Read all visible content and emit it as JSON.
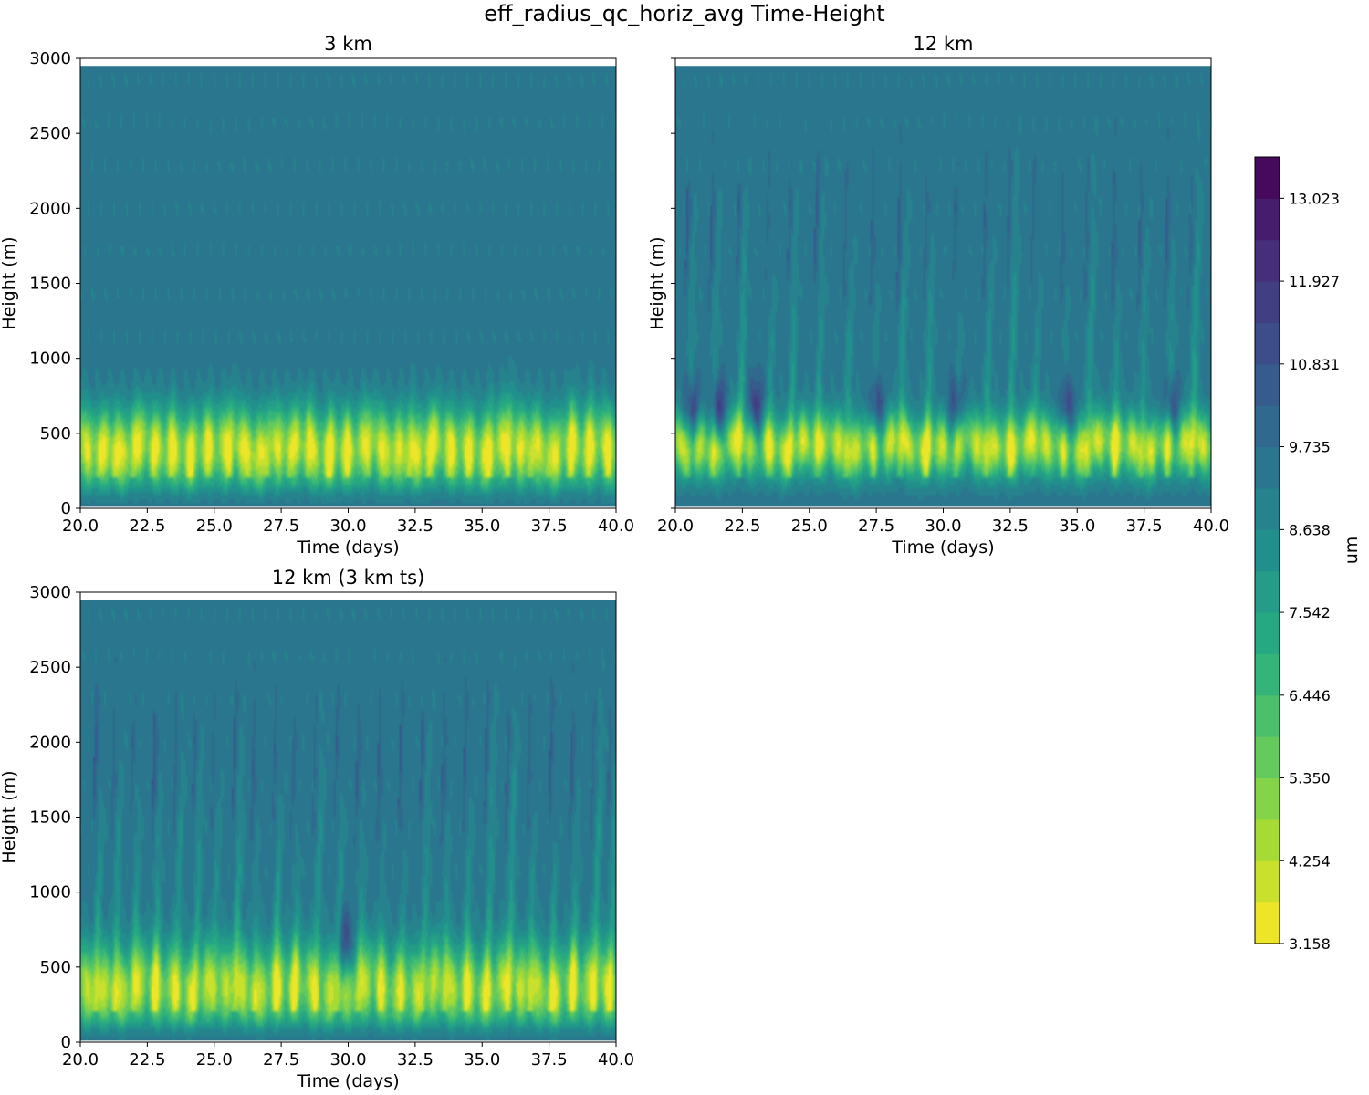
{
  "figure": {
    "suptitle": "eff_radius_qc_horiz_avg Time-Height"
  },
  "colormap": [
    "#440154",
    "#472c7a",
    "#3b518b",
    "#2c718e",
    "#21908d",
    "#27ad81",
    "#5cc863",
    "#aadc32",
    "#fde725"
  ],
  "chart_data": [
    {
      "type": "heatmap",
      "panel": "top-left",
      "title": "3 km",
      "xlabel": "Time (days)",
      "ylabel": "Height (m)",
      "xlim": [
        20,
        40
      ],
      "ylim": [
        0,
        3000
      ],
      "data_top": 2950,
      "x_ticks": [
        "20.0",
        "22.5",
        "25.0",
        "27.5",
        "30.0",
        "32.5",
        "35.0",
        "37.5",
        "40.0"
      ],
      "y_ticks": [
        "0",
        "500",
        "1000",
        "1500",
        "2000",
        "2500",
        "3000"
      ],
      "y_ticklabels_shown": true,
      "background_value": 9.4,
      "features": {
        "layer_center_m": 400,
        "layer_min_value": 3.4,
        "layer_spread_m": 260,
        "spike_top_m": 1100,
        "spike_days": [
          20.7,
          21.3,
          22.0,
          22.7,
          23.4,
          24.1,
          24.8,
          25.6,
          26.3,
          27.0,
          27.8,
          28.5,
          29.3,
          30.0,
          30.8,
          31.5,
          32.3,
          33.0,
          33.8,
          34.5,
          35.3,
          36.0,
          36.8,
          37.5,
          38.3,
          39.0,
          39.7
        ],
        "large_drop_days": []
      }
    },
    {
      "type": "heatmap",
      "panel": "top-right",
      "title": "12 km",
      "xlabel": "Time (days)",
      "ylabel": "Height (m)",
      "xlim": [
        20,
        40
      ],
      "ylim": [
        0,
        3000
      ],
      "data_top": 2950,
      "x_ticks": [
        "20.0",
        "22.5",
        "25.0",
        "27.5",
        "30.0",
        "32.5",
        "35.0",
        "37.5",
        "40.0"
      ],
      "y_ticks": [
        "0",
        "500",
        "1000",
        "1500",
        "2000",
        "2500",
        "3000"
      ],
      "y_ticklabels_shown": false,
      "background_value": 9.4,
      "features": {
        "layer_center_m": 420,
        "layer_min_value": 3.6,
        "layer_spread_m": 200,
        "spike_top_m": 2700,
        "spike_days": [
          20.5,
          21.4,
          22.4,
          23.5,
          24.3,
          25.3,
          26.4,
          27.4,
          28.4,
          29.4,
          30.5,
          31.6,
          32.5,
          33.4,
          34.5,
          35.4,
          36.4,
          37.4,
          38.4,
          39.3
        ],
        "large_drop_days": [
          20.6,
          21.6,
          23.0,
          27.5,
          30.5,
          34.6,
          38.5
        ]
      }
    },
    {
      "type": "heatmap",
      "panel": "bottom-left",
      "title": "12 km (3 km ts)",
      "xlabel": "Time (days)",
      "ylabel": "Height (m)",
      "xlim": [
        20,
        40
      ],
      "ylim": [
        0,
        3000
      ],
      "data_top": 2950,
      "x_ticks": [
        "20.0",
        "22.5",
        "25.0",
        "27.5",
        "30.0",
        "32.5",
        "35.0",
        "37.5",
        "40.0"
      ],
      "y_ticks": [
        "0",
        "500",
        "1000",
        "1500",
        "2000",
        "2500",
        "3000"
      ],
      "y_ticklabels_shown": true,
      "background_value": 9.4,
      "features": {
        "layer_center_m": 360,
        "layer_min_value": 4.0,
        "layer_spread_m": 280,
        "spike_top_m": 2600,
        "spike_days": [
          20.6,
          21.3,
          22.0,
          22.8,
          23.6,
          24.3,
          25.0,
          25.8,
          26.5,
          27.3,
          28.0,
          28.8,
          29.6,
          30.4,
          31.2,
          32.0,
          32.8,
          33.6,
          34.4,
          35.2,
          36.0,
          36.8,
          37.6,
          38.4,
          39.2,
          39.8
        ],
        "large_drop_days": [
          29.9
        ]
      }
    }
  ],
  "colorbar": {
    "label": "um",
    "vmin": 3.158,
    "vmax": 13.571,
    "levels": 19,
    "tick_values": [
      3.158,
      4.254,
      5.35,
      6.446,
      7.542,
      8.638,
      9.735,
      10.831,
      11.927,
      13.023
    ],
    "tick_labels": [
      "3.158",
      "4.254",
      "5.350",
      "6.446",
      "7.542",
      "8.638",
      "9.735",
      "10.831",
      "11.927",
      "13.023"
    ]
  }
}
